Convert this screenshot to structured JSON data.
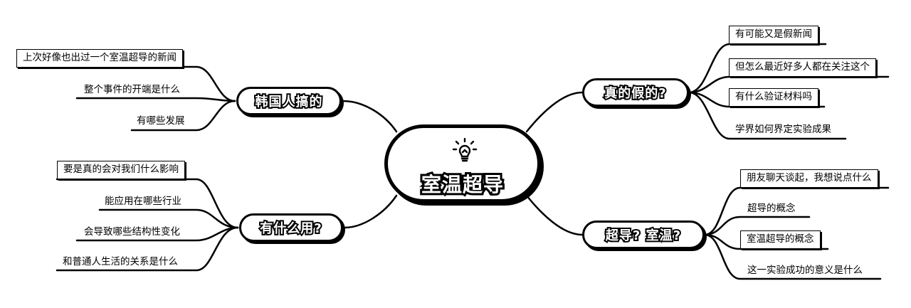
{
  "center": {
    "title": "室温超导",
    "icon": "lightbulb-icon"
  },
  "branches": {
    "korea": {
      "label": "韩国人搞的",
      "leaves": [
        "上次好像也出过一个室温超导的新闻",
        "整个事件的开端是什么",
        "有哪些发展"
      ]
    },
    "use": {
      "label": "有什么用?",
      "leaves": [
        "要是真的会对我们什么影响",
        "能应用在哪些行业",
        "会导致哪些结构性变化",
        "和普通人生活的关系是什么"
      ]
    },
    "real": {
      "label": "真的假的?",
      "leaves": [
        "有可能又是假新闻",
        "但怎么最近好多人都在关注这个",
        "有什么验证材料吗",
        "学界如何界定实验成果"
      ]
    },
    "concept": {
      "label": "超导? 室温?",
      "leaves": [
        "朋友聊天谈起，我想说点什么",
        "超导的概念",
        "室温超导的概念",
        "这一实验成功的意义是什么"
      ]
    }
  }
}
